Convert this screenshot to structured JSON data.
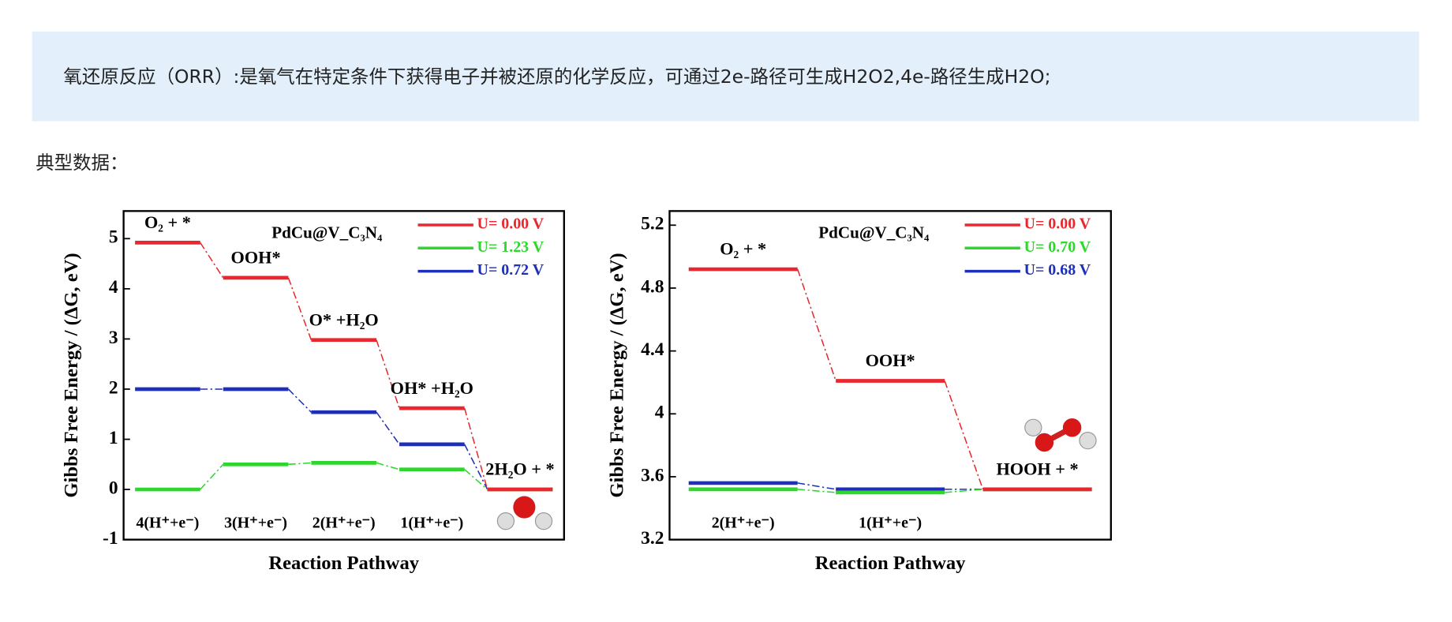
{
  "banner": {
    "text": "氧还原反应（ORR）:是氧气在特定条件下获得电子并被还原的化学反应，可通过2e-路径可生成H2O2,4e-路径生成H2O;"
  },
  "section_label": "典型数据：",
  "chart_data": [
    {
      "type": "energy-diagram",
      "inset_title": "PdCu@V_C₃N₄",
      "y_label": "Gibbs Free Energy / (ΔG, eV)",
      "x_label": "Reaction Pathway",
      "categories": [
        "O₂ + *",
        "OOH*",
        "O* +H₂O",
        "OH* +H₂O",
        "2H₂O + *"
      ],
      "annotations": [
        "4(H⁺+e⁻)",
        "3(H⁺+e⁻)",
        "2(H⁺+e⁻)",
        "1(H⁺+e⁻)"
      ],
      "series": [
        {
          "name": "U= 0.00 V",
          "color": "#e8282e",
          "values": [
            4.92,
            4.22,
            2.98,
            1.62,
            0
          ]
        },
        {
          "name": "U= 1.23 V",
          "color": "#2ed62e",
          "values": [
            0,
            0.5,
            0.53,
            0.4,
            0
          ]
        },
        {
          "name": "U= 0.72 V",
          "color": "#1f2fb8",
          "values": [
            2.0,
            2.0,
            1.54,
            0.9,
            0
          ]
        }
      ],
      "ylim": [
        -1,
        5.55
      ],
      "yticks": [
        -1,
        0,
        1,
        2,
        3,
        4,
        5
      ]
    },
    {
      "type": "energy-diagram",
      "inset_title": "PdCu@V_C₃N₄",
      "y_label": "Gibbs Free Energy / (ΔG, eV)",
      "x_label": "Reaction Pathway",
      "categories": [
        "O₂ + *",
        "OOH*",
        "HOOH + *"
      ],
      "annotations": [
        "2(H⁺+e⁻)",
        "1(H⁺+e⁻)"
      ],
      "series": [
        {
          "name": "U= 0.00 V",
          "color": "#e8282e",
          "values": [
            4.92,
            4.21,
            3.52
          ]
        },
        {
          "name": "U= 0.70 V",
          "color": "#2ed62e",
          "values": [
            3.52,
            3.5,
            3.52
          ]
        },
        {
          "name": "U= 0.68 V",
          "color": "#1f2fb8",
          "values": [
            3.56,
            3.52,
            3.52
          ]
        }
      ],
      "ylim": [
        3.2,
        5.29
      ],
      "yticks": [
        3.2,
        3.6,
        4.0,
        4.4,
        4.8,
        5.2
      ]
    }
  ]
}
